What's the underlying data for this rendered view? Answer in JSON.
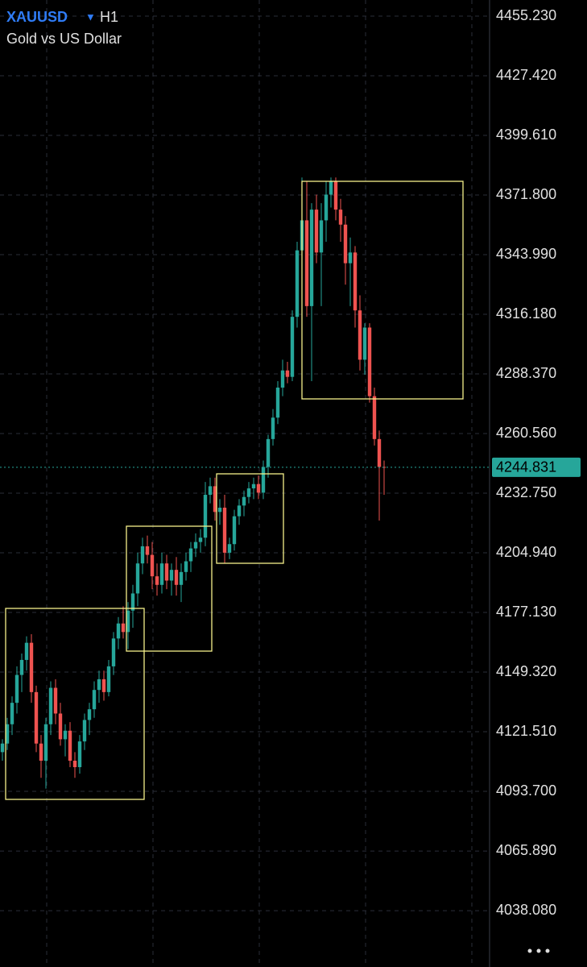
{
  "chart_data": {
    "type": "candlestick",
    "title": "XAUUSD",
    "interval": "H1",
    "subtitle": "Gold vs US Dollar",
    "up_color": "#26a69a",
    "down_color": "#ef5350",
    "grid": true,
    "last_price": 4244.831,
    "ylim": [
      4011.8,
      4462.75
    ],
    "yticks": [
      {
        "value": 4455.23,
        "label": "4455.230"
      },
      {
        "value": 4427.42,
        "label": "4427.420"
      },
      {
        "value": 4399.61,
        "label": "4399.610"
      },
      {
        "value": 4371.8,
        "label": "4371.800"
      },
      {
        "value": 4343.99,
        "label": "4343.990"
      },
      {
        "value": 4316.18,
        "label": "4316.180"
      },
      {
        "value": 4288.37,
        "label": "4288.370"
      },
      {
        "value": 4260.56,
        "label": "4260.560"
      },
      {
        "value": 4232.75,
        "label": "4232.750"
      },
      {
        "value": 4204.94,
        "label": "4204.940"
      },
      {
        "value": 4177.13,
        "label": "4177.130"
      },
      {
        "value": 4149.32,
        "label": "4149.320"
      },
      {
        "value": 4121.51,
        "label": "4121.510"
      },
      {
        "value": 4093.7,
        "label": "4093.700"
      },
      {
        "value": 4065.89,
        "label": "4065.890"
      },
      {
        "value": 4038.08,
        "label": "4038.080"
      }
    ],
    "open": [
      4112,
      4116,
      4125,
      4135,
      4148,
      4155,
      4163,
      4140,
      4116,
      4108,
      4125,
      4142,
      4130,
      4118,
      4122,
      4108,
      4105,
      4117,
      4127,
      4132,
      4141,
      4146,
      4140,
      4152,
      4165,
      4172,
      4168,
      4178,
      4186,
      4200,
      4208,
      4204,
      4194,
      4190,
      4200,
      4192,
      4197,
      4190,
      4196,
      4201,
      4207,
      4210,
      4212,
      4232,
      4236,
      4224,
      4226,
      4205,
      4209,
      4222,
      4227,
      4231,
      4235,
      4237,
      4233,
      4245,
      4258,
      4268,
      4282,
      4290,
      4287,
      4315,
      4346,
      4360,
      4320,
      4365,
      4345,
      4360,
      4372,
      4378,
      4365,
      4358,
      4340,
      4345,
      4318,
      4295,
      4310,
      4278,
      4258,
      4245
    ],
    "high": [
      4118,
      4128,
      4138,
      4152,
      4158,
      4166,
      4167,
      4143,
      4120,
      4128,
      4145,
      4146,
      4135,
      4125,
      4126,
      4112,
      4120,
      4130,
      4135,
      4145,
      4150,
      4150,
      4155,
      4168,
      4175,
      4180,
      4182,
      4190,
      4205,
      4212,
      4213,
      4210,
      4200,
      4205,
      4204,
      4200,
      4203,
      4200,
      4205,
      4210,
      4214,
      4216,
      4238,
      4240,
      4240,
      4230,
      4232,
      4212,
      4225,
      4230,
      4234,
      4238,
      4240,
      4241,
      4248,
      4260,
      4272,
      4285,
      4295,
      4294,
      4318,
      4350,
      4380,
      4378,
      4368,
      4372,
      4368,
      4378,
      4380,
      4380,
      4370,
      4362,
      4352,
      4348,
      4325,
      4312,
      4312,
      4282,
      4262,
      4248
    ],
    "low": [
      4108,
      4113,
      4120,
      4130,
      4140,
      4150,
      4135,
      4112,
      4100,
      4095,
      4120,
      4125,
      4115,
      4110,
      4105,
      4100,
      4102,
      4113,
      4120,
      4128,
      4135,
      4136,
      4138,
      4148,
      4160,
      4165,
      4160,
      4170,
      4180,
      4195,
      4200,
      4188,
      4185,
      4186,
      4188,
      4185,
      4185,
      4182,
      4192,
      4196,
      4203,
      4205,
      4208,
      4228,
      4220,
      4218,
      4200,
      4202,
      4206,
      4218,
      4222,
      4228,
      4230,
      4230,
      4230,
      4240,
      4255,
      4265,
      4278,
      4284,
      4285,
      4310,
      4340,
      4315,
      4285,
      4340,
      4320,
      4350,
      4366,
      4360,
      4350,
      4330,
      4320,
      4310,
      4290,
      4288,
      4275,
      4255,
      4220,
      4232
    ],
    "close": [
      4116,
      4125,
      4135,
      4148,
      4155,
      4163,
      4140,
      4116,
      4108,
      4125,
      4142,
      4130,
      4118,
      4122,
      4108,
      4105,
      4117,
      4127,
      4132,
      4141,
      4146,
      4140,
      4152,
      4165,
      4172,
      4168,
      4178,
      4186,
      4200,
      4208,
      4204,
      4194,
      4190,
      4200,
      4192,
      4197,
      4190,
      4196,
      4201,
      4207,
      4210,
      4212,
      4232,
      4236,
      4224,
      4226,
      4205,
      4209,
      4222,
      4227,
      4231,
      4235,
      4237,
      4233,
      4245,
      4258,
      4268,
      4282,
      4290,
      4287,
      4315,
      4346,
      4360,
      4320,
      4365,
      4345,
      4360,
      4372,
      4378,
      4365,
      4358,
      4340,
      4345,
      4318,
      4295,
      4310,
      4278,
      4258,
      4245,
      4244.8
    ]
  }
}
